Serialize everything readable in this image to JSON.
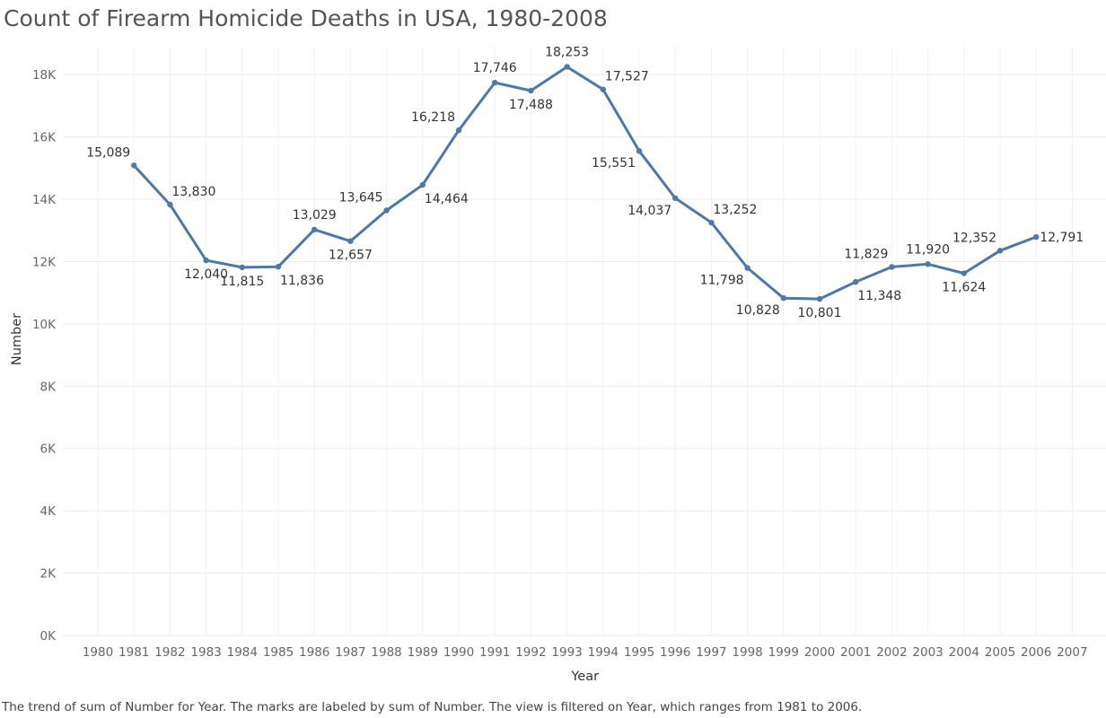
{
  "chart_data": {
    "type": "line",
    "title": "Count of Firearm Homicide Deaths in USA, 1980-2008",
    "caption": "The trend of sum of Number for Year.  The marks are labeled by sum of Number. The view is filtered on Year, which ranges from 1981 to 2006.",
    "xlabel": "Year",
    "ylabel": "Number",
    "x_categories": [
      "1980",
      "1981",
      "1982",
      "1983",
      "1984",
      "1985",
      "1986",
      "1987",
      "1988",
      "1989",
      "1990",
      "1991",
      "1992",
      "1993",
      "1994",
      "1995",
      "1996",
      "1997",
      "1998",
      "1999",
      "2000",
      "2001",
      "2002",
      "2003",
      "2004",
      "2005",
      "2006",
      "2007"
    ],
    "yticks": [
      {
        "value": 0,
        "label": "0K"
      },
      {
        "value": 2000,
        "label": "2K"
      },
      {
        "value": 4000,
        "label": "4K"
      },
      {
        "value": 6000,
        "label": "6K"
      },
      {
        "value": 8000,
        "label": "8K"
      },
      {
        "value": 10000,
        "label": "10K"
      },
      {
        "value": 12000,
        "label": "12K"
      },
      {
        "value": 14000,
        "label": "14K"
      },
      {
        "value": 16000,
        "label": "16K"
      },
      {
        "value": 18000,
        "label": "18K"
      }
    ],
    "ylim": [
      0,
      18900
    ],
    "grid": true,
    "series": [
      {
        "color": "#4e79a7",
        "points": [
          {
            "x": "1981",
            "y": 15089,
            "label": "15,089",
            "pos": "above-left"
          },
          {
            "x": "1982",
            "y": 13830,
            "label": "13,830",
            "pos": "above-right"
          },
          {
            "x": "1983",
            "y": 12040,
            "label": "12,040",
            "pos": "below"
          },
          {
            "x": "1984",
            "y": 11815,
            "label": "11,815",
            "pos": "below"
          },
          {
            "x": "1985",
            "y": 11836,
            "label": "11,836",
            "pos": "below-right"
          },
          {
            "x": "1986",
            "y": 13029,
            "label": "13,029",
            "pos": "above"
          },
          {
            "x": "1987",
            "y": 12657,
            "label": "12,657",
            "pos": "below"
          },
          {
            "x": "1988",
            "y": 13645,
            "label": "13,645",
            "pos": "above-left"
          },
          {
            "x": "1989",
            "y": 14464,
            "label": "14,464",
            "pos": "below-right"
          },
          {
            "x": "1990",
            "y": 16218,
            "label": "16,218",
            "pos": "above-left"
          },
          {
            "x": "1991",
            "y": 17746,
            "label": "17,746",
            "pos": "above"
          },
          {
            "x": "1992",
            "y": 17488,
            "label": "17,488",
            "pos": "below"
          },
          {
            "x": "1993",
            "y": 18253,
            "label": "18,253",
            "pos": "above"
          },
          {
            "x": "1994",
            "y": 17527,
            "label": "17,527",
            "pos": "above-right"
          },
          {
            "x": "1995",
            "y": 15551,
            "label": "15,551",
            "pos": "below-left"
          },
          {
            "x": "1996",
            "y": 14037,
            "label": "14,037",
            "pos": "below-left"
          },
          {
            "x": "1997",
            "y": 13252,
            "label": "13,252",
            "pos": "above-right"
          },
          {
            "x": "1998",
            "y": 11798,
            "label": "11,798",
            "pos": "below-left"
          },
          {
            "x": "1999",
            "y": 10828,
            "label": "10,828",
            "pos": "below-left"
          },
          {
            "x": "2000",
            "y": 10801,
            "label": "10,801",
            "pos": "below"
          },
          {
            "x": "2001",
            "y": 11348,
            "label": "11,348",
            "pos": "below-right"
          },
          {
            "x": "2002",
            "y": 11829,
            "label": "11,829",
            "pos": "above-left"
          },
          {
            "x": "2003",
            "y": 11920,
            "label": "11,920",
            "pos": "above"
          },
          {
            "x": "2004",
            "y": 11624,
            "label": "11,624",
            "pos": "below"
          },
          {
            "x": "2005",
            "y": 12352,
            "label": "12,352",
            "pos": "above-left"
          },
          {
            "x": "2006",
            "y": 12791,
            "label": "12,791",
            "pos": "right"
          }
        ]
      }
    ]
  }
}
